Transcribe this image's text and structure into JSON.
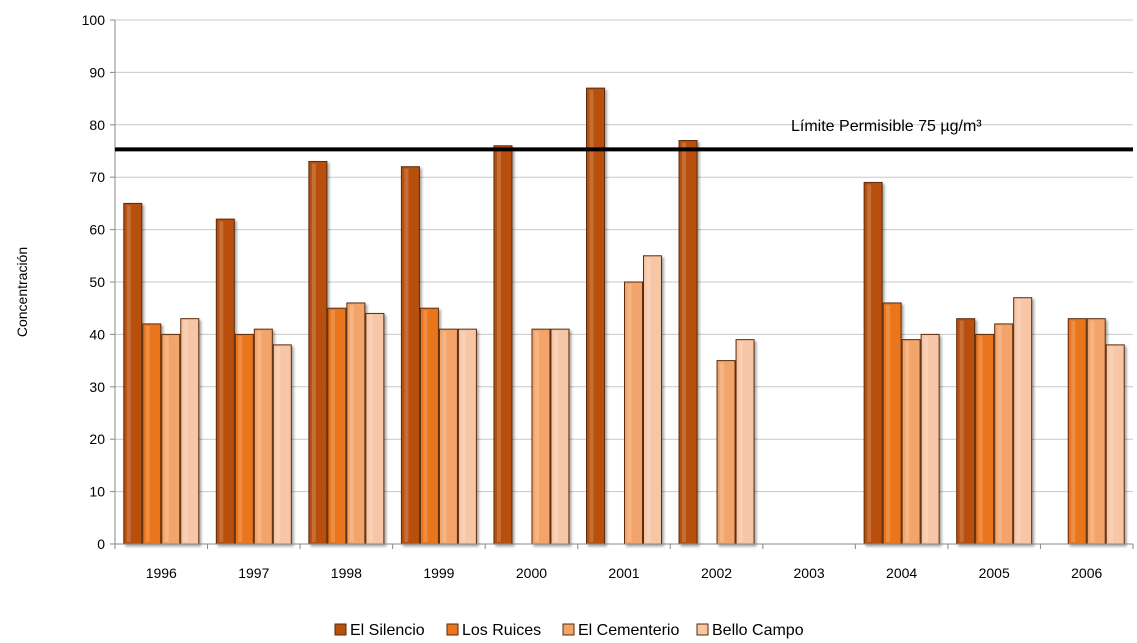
{
  "chart_data": {
    "type": "bar",
    "title": "",
    "xlabel": "",
    "ylabel": "Concentración",
    "ylim": [
      0,
      100
    ],
    "yticks": [
      0,
      10,
      20,
      30,
      40,
      50,
      60,
      70,
      80,
      90,
      100
    ],
    "categories": [
      "1996",
      "1997",
      "1998",
      "1999",
      "2000",
      "2001",
      "2002",
      "2003",
      "2004",
      "2005",
      "2006"
    ],
    "series": [
      {
        "name": "El Silencio",
        "color": "#b8500f",
        "values": [
          65,
          62,
          73,
          72,
          76,
          87,
          77,
          null,
          69,
          43,
          null
        ]
      },
      {
        "name": "Los Ruices",
        "color": "#e9761f",
        "values": [
          42,
          40,
          45,
          45,
          null,
          null,
          null,
          null,
          46,
          40,
          43
        ]
      },
      {
        "name": "El Cementerio",
        "color": "#f3a46b",
        "values": [
          40,
          41,
          46,
          41,
          41,
          50,
          35,
          null,
          39,
          42,
          43
        ]
      },
      {
        "name": "Bello Campo",
        "color": "#f7c6a6",
        "values": [
          43,
          38,
          44,
          41,
          41,
          55,
          39,
          null,
          40,
          47,
          38
        ]
      }
    ],
    "reference_line": {
      "value": 75.3,
      "label": "Límite Permisible 75 µg/m³",
      "color": "#000000"
    },
    "grid": true,
    "legend_position": "bottom"
  }
}
